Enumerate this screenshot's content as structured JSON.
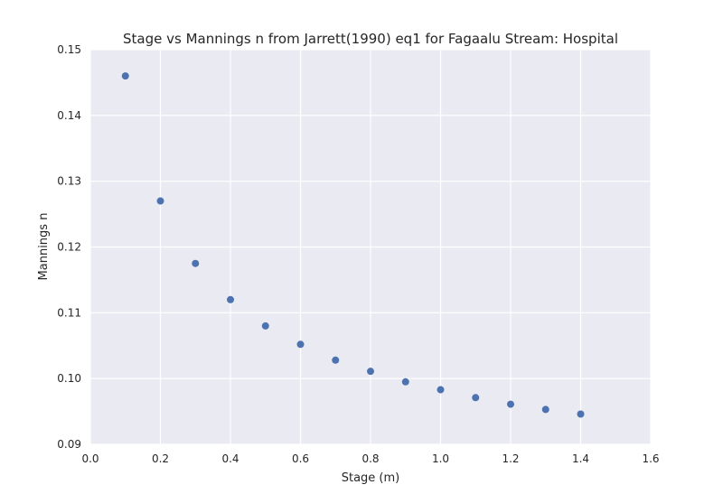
{
  "chart_data": {
    "type": "scatter",
    "title": "Stage vs Mannings n from Jarrett(1990) eq1 for Fagaalu Stream: Hospital",
    "xlabel": "Stage (m)",
    "ylabel": "Mannings n",
    "xlim": [
      0.0,
      1.6
    ],
    "ylim": [
      0.09,
      0.15
    ],
    "xticks": [
      "0.0",
      "0.2",
      "0.4",
      "0.6",
      "0.8",
      "1.0",
      "1.2",
      "1.4",
      "1.6"
    ],
    "yticks": [
      "0.09",
      "0.10",
      "0.11",
      "0.12",
      "0.13",
      "0.14",
      "0.15"
    ],
    "grid": true,
    "series": [
      {
        "color": "#4c72b0",
        "x": [
          0.1,
          0.2,
          0.3,
          0.4,
          0.5,
          0.6,
          0.7,
          0.8,
          0.9,
          1.0,
          1.1,
          1.2,
          1.3,
          1.4
        ],
        "y": [
          0.146,
          0.127,
          0.1175,
          0.112,
          0.108,
          0.1052,
          0.1028,
          0.1011,
          0.0995,
          0.0983,
          0.0971,
          0.0961,
          0.0953,
          0.0946
        ]
      }
    ]
  }
}
